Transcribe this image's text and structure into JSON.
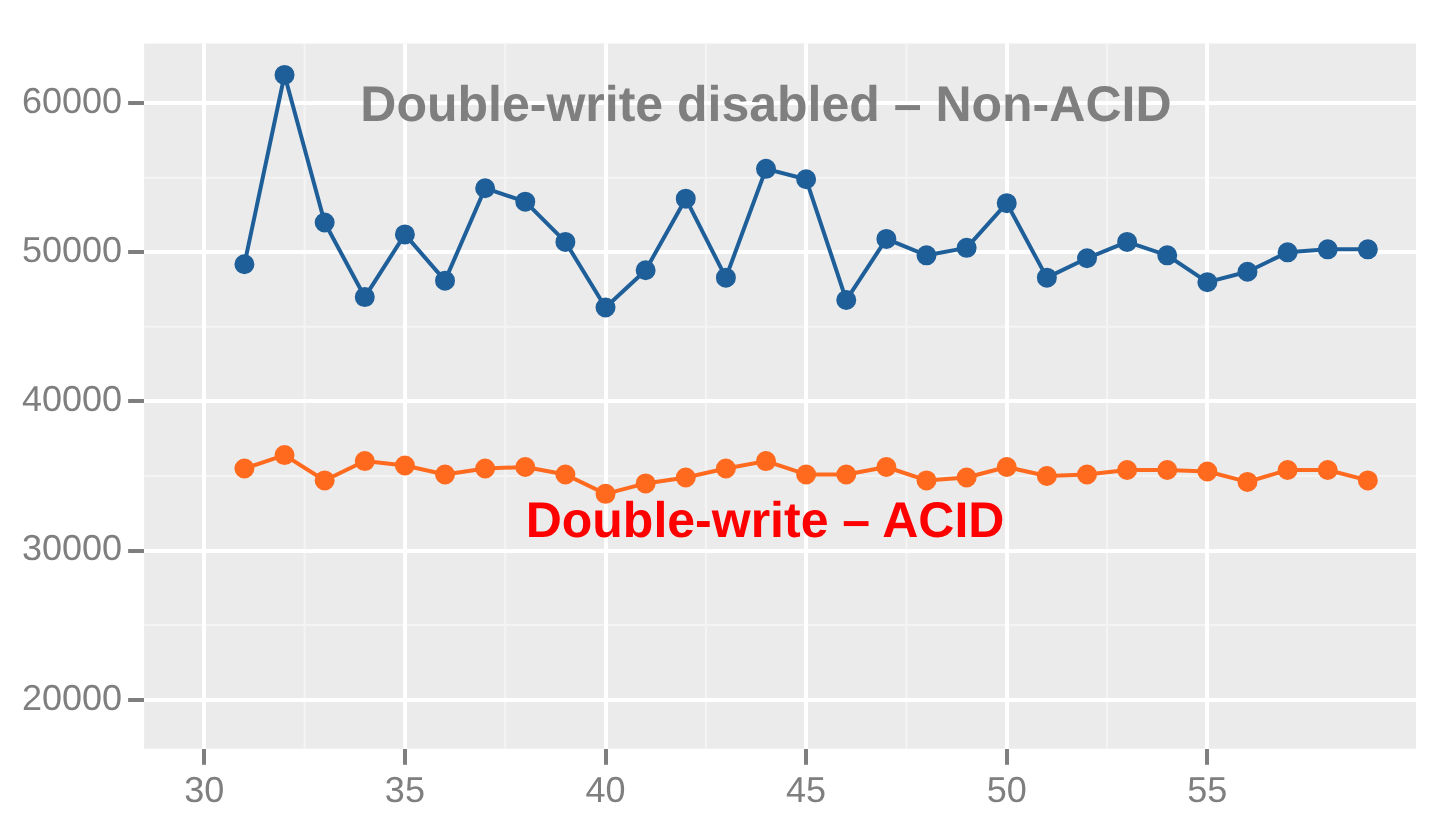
{
  "chart_data": {
    "type": "line",
    "x": [
      31,
      32,
      33,
      34,
      35,
      36,
      37,
      38,
      39,
      40,
      41,
      42,
      43,
      44,
      45,
      46,
      47,
      48,
      49,
      50,
      51,
      52,
      53,
      54,
      55,
      56,
      57,
      58,
      59
    ],
    "series": [
      {
        "color": "#1f5f99",
        "values": [
          49200,
          61900,
          52000,
          47000,
          51200,
          48100,
          54300,
          53400,
          50700,
          46300,
          48800,
          53600,
          48300,
          55600,
          54900,
          46800,
          50900,
          49800,
          50300,
          53300,
          48300,
          49600,
          50700,
          49800,
          48000,
          48700,
          50000,
          50200,
          50200
        ]
      },
      {
        "color": "#ff6a1f",
        "values": [
          35500,
          36400,
          34700,
          36000,
          35700,
          35100,
          35500,
          35600,
          35100,
          33800,
          34500,
          34900,
          35500,
          36000,
          35100,
          35100,
          35600,
          34700,
          34900,
          35600,
          35000,
          35100,
          35400,
          35400,
          35300,
          34600,
          35400,
          35400,
          34700
        ]
      }
    ],
    "xlim": [
      28.5,
      60.2
    ],
    "xticks": [
      30,
      35,
      40,
      45,
      50,
      55
    ],
    "ylim": [
      16700,
      64000
    ],
    "yticks": [
      20000,
      30000,
      40000,
      50000,
      60000
    ],
    "grid": true,
    "marker": "circle",
    "line_style": "solid",
    "legend": false,
    "annotations": [
      "Double-write disabled – Non-ACID",
      "Double-write – ACID"
    ]
  }
}
